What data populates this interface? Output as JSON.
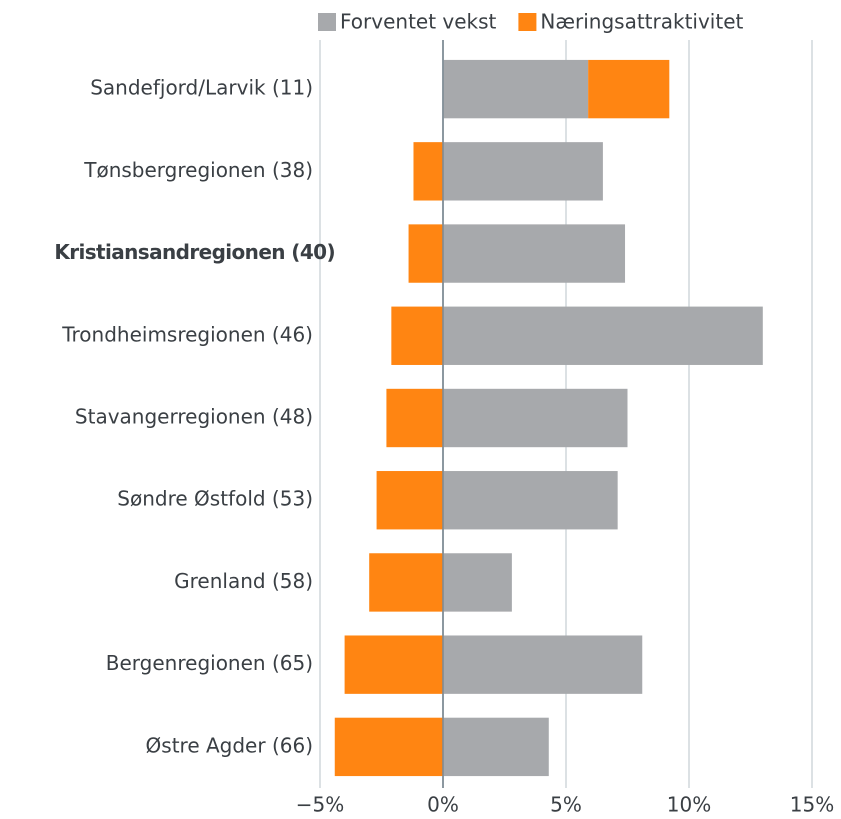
{
  "chart_data": {
    "type": "hbar_stacked",
    "categories": [
      "Sandefjord/Larvik (11)",
      "Tønsbergregionen (38)",
      "Kristiansandregionen (40)",
      "Trondheimsregionen (46)",
      "Stavangerregionen (48)",
      "Søndre Østfold (53)",
      "Grenland (58)",
      "Bergenregionen (65)",
      "Østre Agder (66)"
    ],
    "highlight_index": 2,
    "series": [
      {
        "name": "Forventet vekst",
        "color": "#a7a9ac",
        "values": [
          5.9,
          6.5,
          7.4,
          13.0,
          7.5,
          7.1,
          2.8,
          8.1,
          4.3
        ]
      },
      {
        "name": "Næringsattraktivitet",
        "color": "#ff8512",
        "values": [
          3.3,
          -1.2,
          -1.4,
          -2.1,
          -2.3,
          -2.7,
          -3.0,
          -4.0,
          -4.4
        ]
      }
    ],
    "xlim": [
      -5,
      15
    ],
    "xticks": [
      {
        "value": -5,
        "label": "−5%"
      },
      {
        "value": 0,
        "label": "0%"
      },
      {
        "value": 5,
        "label": "5%"
      },
      {
        "value": 10,
        "label": "10%"
      },
      {
        "value": 15,
        "label": "15%"
      }
    ],
    "grid": true,
    "legend": "top"
  }
}
